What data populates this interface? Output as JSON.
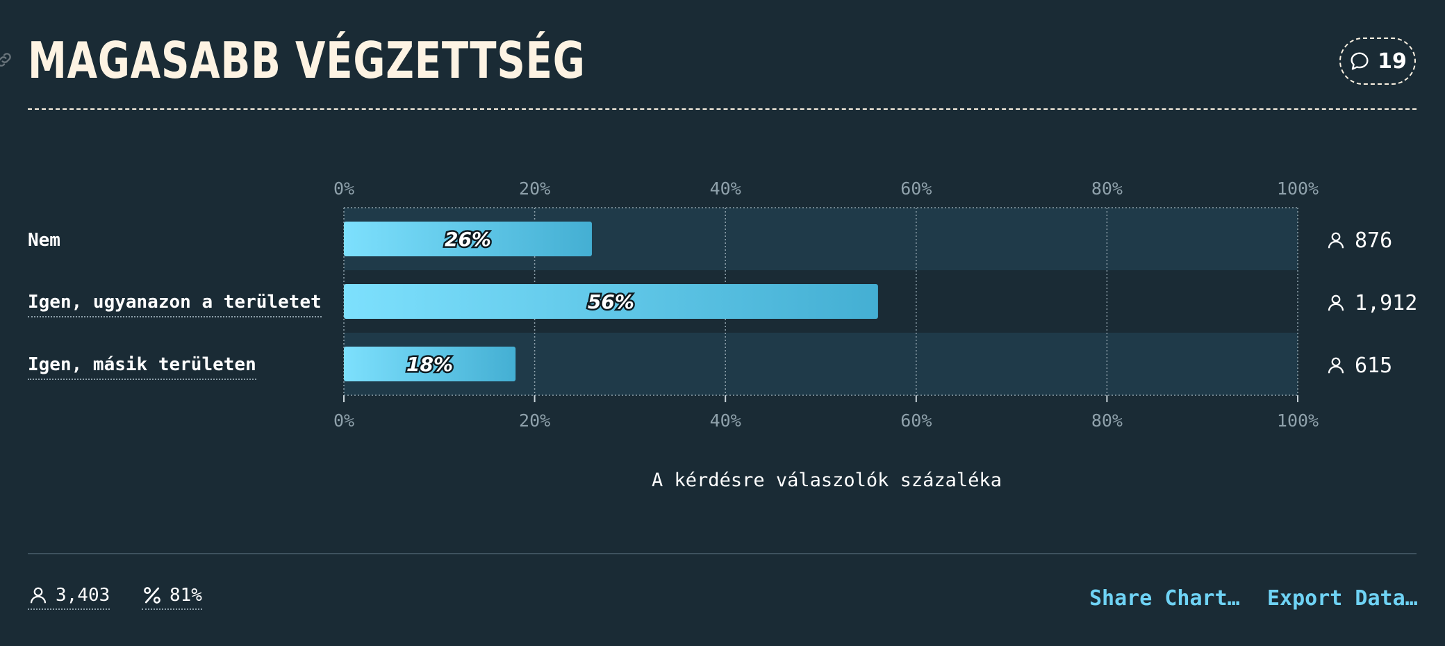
{
  "header": {
    "title": "MAGASABB VÉGZETTSÉG",
    "comment_count": "19"
  },
  "chart_data": {
    "type": "bar",
    "orientation": "horizontal",
    "categories": [
      "Nem",
      "Igen, ugyanazon a területet",
      "Igen, másik területen"
    ],
    "values": [
      26,
      56,
      18
    ],
    "value_labels": [
      "26%",
      "56%",
      "18%"
    ],
    "respondent_counts": [
      "876",
      "1,912",
      "615"
    ],
    "xlim": [
      0,
      100
    ],
    "xticks": [
      "0%",
      "20%",
      "40%",
      "60%",
      "80%",
      "100%"
    ],
    "xlabel": "A kérdésre válaszolók százaléka",
    "grid": true
  },
  "footer": {
    "total_respondents": "3,403",
    "response_rate": "81%",
    "share_label": "Share Chart…",
    "export_label": "Export Data…"
  },
  "colors": {
    "background": "#1a2b35",
    "bar_start": "#7de0fd",
    "bar_end": "#44afd3",
    "band": "#1f3a49",
    "accent": "#6fd3f5",
    "title": "#fdf3e3"
  }
}
